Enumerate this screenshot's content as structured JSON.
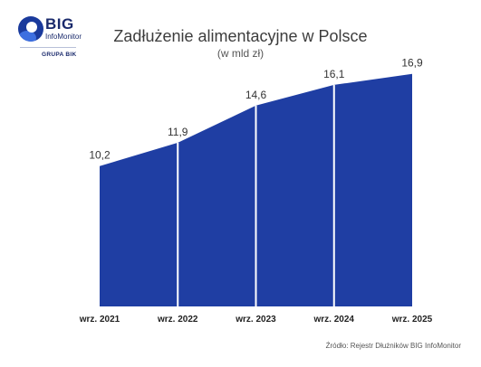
{
  "logo": {
    "name": "BIG",
    "sub": "InfoMonitor",
    "group": "GRUPA BIK"
  },
  "colors": {
    "area": "#1f3ea3",
    "separator": "#ffffff",
    "logo": "#1a3a9c"
  },
  "chart_data": {
    "type": "area",
    "title": "Zadłużenie alimentacyjne w Polsce",
    "subtitle": "(w mld zł)",
    "categories": [
      "wrz. 2021",
      "wrz. 2022",
      "wrz. 2023",
      "wrz. 2024",
      "wrz. 2025"
    ],
    "values": [
      10.2,
      11.9,
      14.6,
      16.1,
      16.9
    ],
    "value_labels": [
      "10,2",
      "11,9",
      "14,6",
      "16,1",
      "16,9"
    ],
    "ylim": [
      0,
      18
    ],
    "grid": false,
    "legend": "none"
  },
  "source": "Źródło: Rejestr Dłużników BIG InfoMonitor"
}
